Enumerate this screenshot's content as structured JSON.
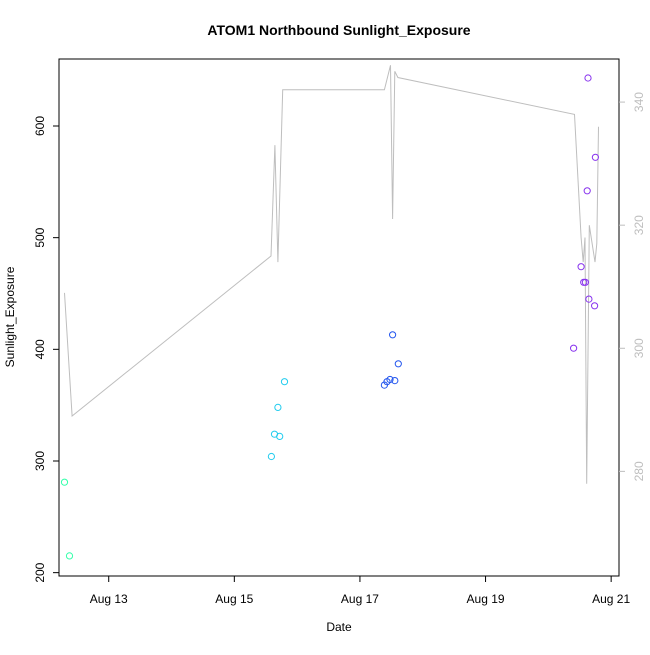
{
  "chart_data": {
    "type": "scatter",
    "title": "ATOM1 Northbound Sunlight_Exposure",
    "xlabel": "Date",
    "ylabel": "Sunlight_Exposure",
    "x_ticks": [
      "Aug 13",
      "Aug 15",
      "Aug 17",
      "Aug 19",
      "Aug 21"
    ],
    "x_tick_dates": [
      "2000-08-13",
      "2000-08-15",
      "2000-08-17",
      "2000-08-19",
      "2000-08-21"
    ],
    "xlim": [
      "2000-08-12 05:00",
      "2000-08-21 03:00"
    ],
    "y_ticks": [
      200,
      300,
      400,
      500,
      600
    ],
    "ylim": [
      197,
      660
    ],
    "y2_ticks": [
      280,
      300,
      320,
      340
    ],
    "y2lim": [
      263,
      347
    ],
    "grid": false,
    "line_color": "#bebebe",
    "right_axis_color": "#bebebe",
    "series": [
      {
        "type": "scatter",
        "points": [
          {
            "x": "2000-08-12 07:05",
            "y": 281,
            "color": "#33ffaa"
          },
          {
            "x": "2000-08-12 09:00",
            "y": 215,
            "color": "#33ffaa"
          },
          {
            "x": "2000-08-15 14:10",
            "y": 304,
            "color": "#22ccee"
          },
          {
            "x": "2000-08-15 15:20",
            "y": 324,
            "color": "#22ccee"
          },
          {
            "x": "2000-08-15 16:40",
            "y": 348,
            "color": "#22ccee"
          },
          {
            "x": "2000-08-15 17:20",
            "y": 322,
            "color": "#22ccee"
          },
          {
            "x": "2000-08-15 19:10",
            "y": 371,
            "color": "#22ccee"
          },
          {
            "x": "2000-08-17 09:20",
            "y": 368,
            "color": "#2255ee"
          },
          {
            "x": "2000-08-17 10:20",
            "y": 371,
            "color": "#2255ee"
          },
          {
            "x": "2000-08-17 11:30",
            "y": 373,
            "color": "#2255ee"
          },
          {
            "x": "2000-08-17 12:30",
            "y": 413,
            "color": "#2255ee"
          },
          {
            "x": "2000-08-17 13:20",
            "y": 372,
            "color": "#2255ee"
          },
          {
            "x": "2000-08-17 14:40",
            "y": 387,
            "color": "#2255ee"
          },
          {
            "x": "2000-08-20 09:40",
            "y": 401,
            "color": "#8833ee"
          },
          {
            "x": "2000-08-20 12:30",
            "y": 474,
            "color": "#8833ee"
          },
          {
            "x": "2000-08-20 13:30",
            "y": 460,
            "color": "#8833ee"
          },
          {
            "x": "2000-08-20 14:10",
            "y": 460,
            "color": "#8833ee"
          },
          {
            "x": "2000-08-20 14:50",
            "y": 542,
            "color": "#8833ee"
          },
          {
            "x": "2000-08-20 15:10",
            "y": 643,
            "color": "#8833ee"
          },
          {
            "x": "2000-08-20 15:30",
            "y": 445,
            "color": "#8833ee"
          },
          {
            "x": "2000-08-20 17:40",
            "y": 439,
            "color": "#8833ee"
          },
          {
            "x": "2000-08-20 18:00",
            "y": 572,
            "color": "#8833ee"
          }
        ]
      },
      {
        "type": "line",
        "axis": "right",
        "points": [
          {
            "x": "2000-08-12 07:05",
            "y": 309
          },
          {
            "x": "2000-08-12 10:00",
            "y": 289
          },
          {
            "x": "2000-08-15 14:00",
            "y": 315
          },
          {
            "x": "2000-08-15 15:30",
            "y": 333
          },
          {
            "x": "2000-08-15 16:40",
            "y": 314
          },
          {
            "x": "2000-08-15 18:30",
            "y": 342
          },
          {
            "x": "2000-08-17 09:20",
            "y": 342
          },
          {
            "x": "2000-08-17 11:40",
            "y": 346
          },
          {
            "x": "2000-08-17 12:30",
            "y": 321
          },
          {
            "x": "2000-08-17 13:20",
            "y": 345
          },
          {
            "x": "2000-08-17 14:30",
            "y": 344
          },
          {
            "x": "2000-08-20 10:00",
            "y": 338
          },
          {
            "x": "2000-08-20 12:30",
            "y": 318
          },
          {
            "x": "2000-08-20 13:20",
            "y": 314
          },
          {
            "x": "2000-08-20 14:00",
            "y": 318
          },
          {
            "x": "2000-08-20 14:40",
            "y": 278
          },
          {
            "x": "2000-08-20 15:40",
            "y": 320
          },
          {
            "x": "2000-08-20 17:50",
            "y": 314
          },
          {
            "x": "2000-08-20 18:30",
            "y": 317
          },
          {
            "x": "2000-08-20 19:10",
            "y": 336
          }
        ]
      }
    ]
  }
}
